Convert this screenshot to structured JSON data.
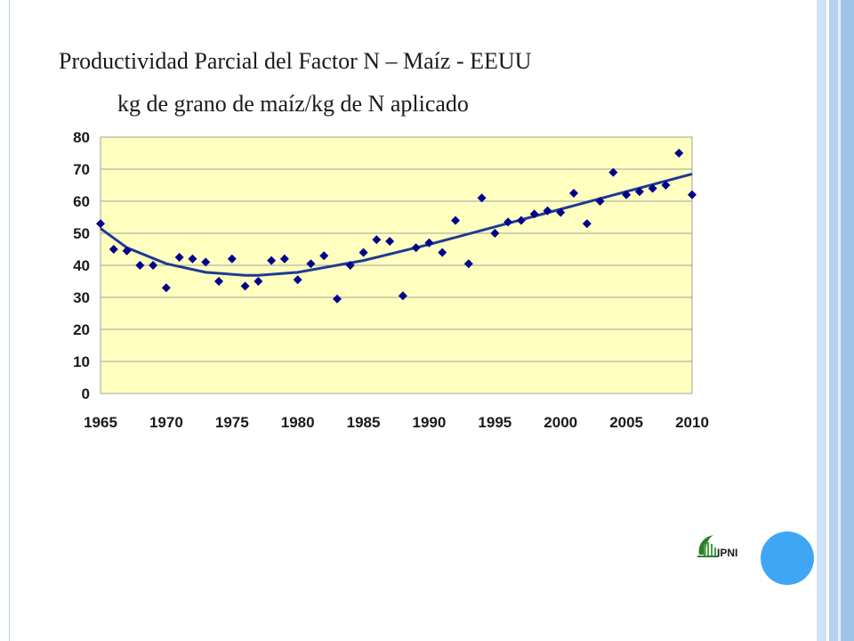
{
  "slide": {
    "title": "Productividad Parcial del Factor N – Maíz - EEUU",
    "subtitle": "kg de grano de maíz/kg de N aplicado",
    "logo_text": "IPNI",
    "colors": {
      "plot_bg": "#ffffc0",
      "marker": "#00008b",
      "trend": "#1f3a93",
      "accent_circle": "#3ea6f4"
    }
  },
  "chart_data": {
    "type": "scatter",
    "title": "",
    "xlabel": "",
    "ylabel": "",
    "xlim": [
      1965,
      2010
    ],
    "ylim": [
      0,
      80
    ],
    "x_ticks": [
      1965,
      1970,
      1975,
      1980,
      1985,
      1990,
      1995,
      2000,
      2005,
      2010
    ],
    "y_ticks": [
      0,
      10,
      20,
      30,
      40,
      50,
      60,
      70,
      80
    ],
    "grid": "horizontal",
    "legend": "none",
    "series": [
      {
        "x": [
          1965,
          1966,
          1967,
          1968,
          1969,
          1970,
          1971,
          1972,
          1973,
          1974,
          1975,
          1976,
          1977,
          1978,
          1979,
          1980,
          1981,
          1982,
          1983,
          1984,
          1985,
          1986,
          1987,
          1988,
          1989,
          1990,
          1991,
          1992,
          1993,
          1994,
          1995,
          1996,
          1997,
          1998,
          1999,
          2000,
          2001,
          2002,
          2003,
          2004,
          2005,
          2006,
          2007,
          2008,
          2009,
          2010
        ],
        "y": [
          53,
          45,
          44.5,
          40,
          40,
          33,
          42.5,
          42,
          41,
          35,
          42,
          33.5,
          35,
          41.5,
          42,
          35.5,
          40.5,
          43,
          29.5,
          40,
          44,
          48,
          47.5,
          30.5,
          45.5,
          47,
          44,
          54,
          40.5,
          61,
          50,
          53.5,
          54,
          56,
          57,
          56.5,
          62.5,
          53,
          60,
          69,
          62,
          63,
          64,
          65,
          75,
          62
        ]
      }
    ],
    "trendline": {
      "type": "polynomial-2",
      "x": [
        1965,
        1967,
        1970,
        1973,
        1976,
        1977,
        1980,
        1985,
        1990,
        1995,
        2000,
        2005,
        2010
      ],
      "y": [
        51.5,
        45.5,
        40.5,
        37.8,
        36.9,
        36.9,
        37.8,
        41.5,
        46.5,
        52,
        57.5,
        63,
        68.5
      ]
    }
  }
}
